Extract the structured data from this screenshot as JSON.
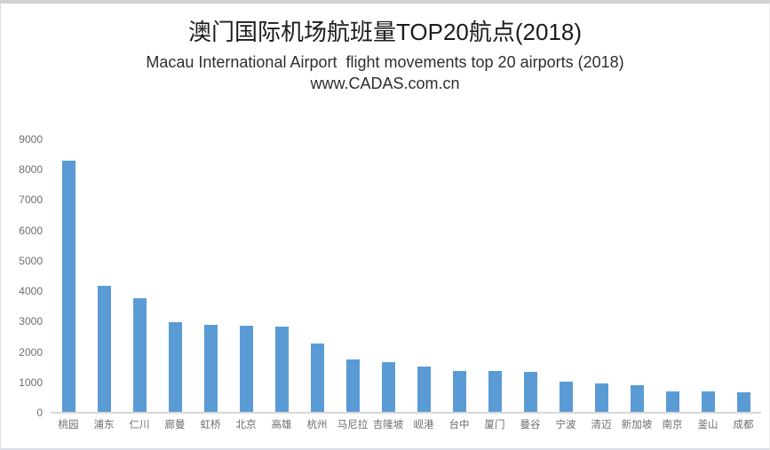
{
  "chart_data": {
    "type": "bar",
    "title": "澳门国际机场航班量TOP20航点(2018)",
    "subtitle": "Macau International Airport  flight movements top 20 airports (2018)",
    "source": "www.CADAS.com.cn",
    "categories": [
      "桃园",
      "浦东",
      "仁川",
      "廊曼",
      "虹桥",
      "北京",
      "高雄",
      "杭州",
      "马尼拉",
      "吉隆坡",
      "岘港",
      "台中",
      "厦门",
      "曼谷",
      "宁波",
      "清迈",
      "新加坡",
      "南京",
      "釜山",
      "成都"
    ],
    "values": [
      8280,
      4150,
      3750,
      2940,
      2860,
      2830,
      2810,
      2250,
      1720,
      1630,
      1500,
      1350,
      1340,
      1330,
      980,
      940,
      880,
      670,
      660,
      650
    ],
    "xlabel": "",
    "ylabel": "",
    "ylim": [
      0,
      9000
    ],
    "yticks": [
      0,
      1000,
      2000,
      3000,
      4000,
      5000,
      6000,
      7000,
      8000,
      9000
    ],
    "grid": false,
    "legend": "none",
    "colors": {
      "bar": "#5B9BD5",
      "axis_line": "#D7D7D7",
      "tick_label": "#6E6E6E",
      "title_text": "#1C1C1C"
    }
  }
}
